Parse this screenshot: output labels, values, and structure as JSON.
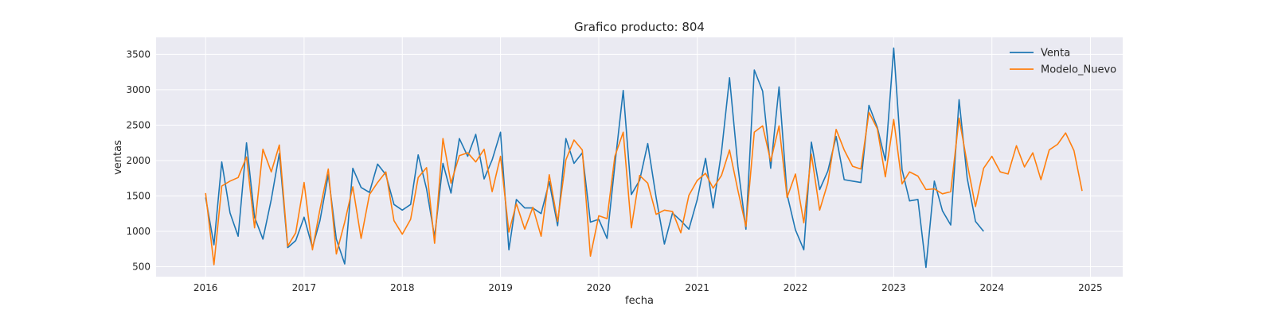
{
  "chart_data": {
    "type": "line",
    "title": "Grafico producto: 804",
    "xlabel": "fecha",
    "ylabel": "ventas",
    "xlim": [
      "2015-07-01",
      "2025-05-01"
    ],
    "ylim": [
      360,
      3740
    ],
    "xticks": [
      "2016",
      "2017",
      "2018",
      "2019",
      "2020",
      "2021",
      "2022",
      "2023",
      "2024",
      "2025"
    ],
    "yticks": [
      500,
      1000,
      1500,
      2000,
      2500,
      3000,
      3500
    ],
    "grid": true,
    "legend_position": "top-right",
    "background_color": "#eaeaf2",
    "series": [
      {
        "name": "Venta",
        "color": "#1f77b4",
        "start": "2016-01",
        "values": [
          1480,
          810,
          1980,
          1260,
          930,
          2250,
          1200,
          890,
          1450,
          2100,
          770,
          870,
          1200,
          770,
          1150,
          1800,
          890,
          540,
          1890,
          1620,
          1550,
          1950,
          1800,
          1380,
          1300,
          1380,
          2080,
          1600,
          920,
          1960,
          1540,
          2310,
          2060,
          2370,
          1740,
          2010,
          2400,
          740,
          1450,
          1330,
          1330,
          1250,
          1700,
          1080,
          2310,
          1960,
          2110,
          1130,
          1170,
          900,
          1940,
          2990,
          1520,
          1720,
          2240,
          1480,
          820,
          1260,
          1150,
          1030,
          1450,
          2030,
          1330,
          2120,
          3170,
          1920,
          1030,
          3280,
          2980,
          1890,
          3040,
          1520,
          1020,
          740,
          2260,
          1590,
          1850,
          2340,
          1730,
          1710,
          1690,
          2780,
          2470,
          2000,
          3590,
          1870,
          1430,
          1450,
          490,
          1710,
          1290,
          1090,
          2860,
          1750,
          1140,
          1000
        ]
      },
      {
        "name": "Modelo_Nuevo",
        "color": "#ff7f0e",
        "start": "2016-01",
        "values": [
          1540,
          530,
          1640,
          1710,
          1760,
          2050,
          1050,
          2160,
          1840,
          2220,
          790,
          980,
          1690,
          740,
          1310,
          1880,
          680,
          1130,
          1630,
          900,
          1520,
          1690,
          1840,
          1150,
          960,
          1170,
          1760,
          1900,
          830,
          2310,
          1680,
          2070,
          2110,
          1980,
          2160,
          1560,
          2060,
          990,
          1390,
          1030,
          1340,
          930,
          1800,
          1140,
          2010,
          2290,
          2150,
          650,
          1220,
          1180,
          2060,
          2400,
          1050,
          1790,
          1680,
          1240,
          1300,
          1280,
          980,
          1510,
          1720,
          1820,
          1610,
          1790,
          2150,
          1580,
          1070,
          2400,
          2490,
          1990,
          2490,
          1480,
          1810,
          1120,
          2090,
          1300,
          1680,
          2440,
          2150,
          1920,
          1880,
          2680,
          2450,
          1770,
          2580,
          1670,
          1840,
          1780,
          1590,
          1600,
          1530,
          1560,
          2600,
          1960,
          1350,
          1890,
          2060,
          1840,
          1810,
          2210,
          1910,
          2110,
          1730,
          2150,
          2230,
          2390,
          2140,
          1570
        ]
      }
    ]
  }
}
